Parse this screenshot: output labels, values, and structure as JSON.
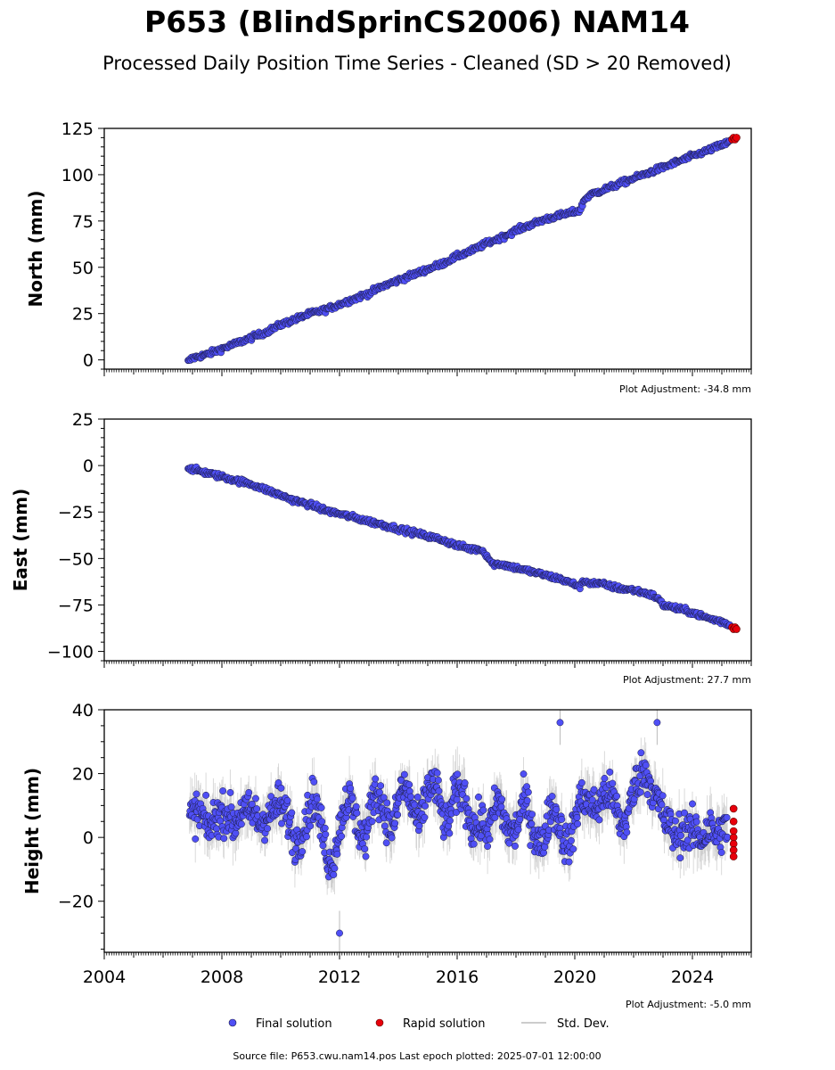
{
  "header": {
    "title": "P653 (BlindSprinCS2006) NAM14",
    "subtitle": "Processed Daily Position Time Series - Cleaned (SD > 20 Removed)"
  },
  "colors": {
    "final": "#4f4ff5",
    "rapid": "#e8000b",
    "std_dev": "#bbbbbb",
    "marker_edge": "#1a1a40"
  },
  "legend": {
    "final_label": "Final solution",
    "rapid_label": "Rapid solution",
    "std_label": "Std. Dev."
  },
  "footer": {
    "source": "Source file: P653.cwu.nam14.pos  Last epoch plotted: 2025-07-01 12:00:00"
  },
  "chart_data": [
    {
      "type": "scatter",
      "component": "north",
      "ylabel": "North (mm)",
      "adjustment": "Plot Adjustment: -34.8 mm",
      "xlim": [
        2004,
        2026
      ],
      "ylim": [
        -5,
        125
      ],
      "yticks": [
        0,
        25,
        50,
        75,
        100,
        125
      ],
      "ytick_labels": [
        "0",
        "25",
        "50",
        "75",
        "100",
        "125"
      ],
      "final_series": {
        "name": "Final solution",
        "x": [
          2006.85,
          2007.0,
          2007.5,
          2008.0,
          2008.5,
          2009.0,
          2009.5,
          2010.0,
          2010.5,
          2011.0,
          2011.5,
          2012.0,
          2012.5,
          2013.0,
          2013.5,
          2014.0,
          2014.5,
          2015.0,
          2015.5,
          2016.0,
          2016.5,
          2017.0,
          2017.5,
          2018.0,
          2018.5,
          2019.0,
          2019.5,
          2020.0,
          2020.2,
          2020.3,
          2020.5,
          2021.0,
          2021.5,
          2022.0,
          2022.5,
          2023.0,
          2023.5,
          2024.0,
          2024.5,
          2025.0,
          2025.3
        ],
        "y": [
          -1,
          1,
          3,
          6,
          9,
          12,
          15,
          19,
          22,
          25,
          27,
          30,
          33,
          36,
          40,
          43,
          46,
          49,
          52,
          56,
          59,
          63,
          66,
          70,
          73,
          76,
          78,
          80,
          81,
          86,
          89,
          92,
          95,
          98,
          101,
          104,
          107,
          110,
          113,
          116,
          118
        ]
      },
      "rapid_series": {
        "name": "Rapid solution",
        "x": [
          2025.35,
          2025.4,
          2025.45,
          2025.5
        ],
        "y": [
          119,
          120,
          119,
          120
        ]
      }
    },
    {
      "type": "scatter",
      "component": "east",
      "ylabel": "East (mm)",
      "adjustment": "Plot Adjustment: 27.7 mm",
      "xlim": [
        2004,
        2026
      ],
      "ylim": [
        -105,
        25
      ],
      "yticks": [
        -100,
        -75,
        -50,
        -25,
        0,
        25
      ],
      "ytick_labels": [
        "−100",
        "−75",
        "−50",
        "−25",
        "0",
        "25"
      ],
      "final_series": {
        "name": "Final solution",
        "x": [
          2006.85,
          2007.0,
          2007.5,
          2008.0,
          2008.5,
          2009.0,
          2009.5,
          2010.0,
          2010.5,
          2011.0,
          2011.5,
          2012.0,
          2012.5,
          2013.0,
          2013.5,
          2014.0,
          2014.5,
          2015.0,
          2015.5,
          2016.0,
          2016.5,
          2016.8,
          2017.0,
          2017.2,
          2017.5,
          2018.0,
          2018.5,
          2019.0,
          2019.5,
          2020.0,
          2020.2,
          2020.3,
          2020.5,
          2021.0,
          2021.5,
          2022.0,
          2022.5,
          2022.8,
          2023.0,
          2023.5,
          2024.0,
          2024.5,
          2025.0,
          2025.3
        ],
        "y": [
          -1,
          -2,
          -4,
          -6,
          -8,
          -10,
          -13,
          -16,
          -19,
          -21,
          -24,
          -26,
          -28,
          -30,
          -32,
          -34,
          -36,
          -38,
          -40,
          -43,
          -45,
          -45,
          -48,
          -53,
          -53,
          -55,
          -57,
          -59,
          -61,
          -64,
          -65,
          -62,
          -63,
          -64,
          -66,
          -67,
          -69,
          -71,
          -75,
          -77,
          -79,
          -82,
          -84,
          -86
        ]
      },
      "rapid_series": {
        "name": "Rapid solution",
        "x": [
          2025.35,
          2025.4,
          2025.45,
          2025.5
        ],
        "y": [
          -87,
          -88,
          -87,
          -88
        ]
      }
    },
    {
      "type": "scatter",
      "component": "height",
      "ylabel": "Height (mm)",
      "adjustment": "Plot Adjustment: -5.0 mm",
      "xlim": [
        2004,
        2026
      ],
      "ylim": [
        -36,
        40
      ],
      "yticks": [
        -20,
        0,
        20,
        40
      ],
      "ytick_labels": [
        "−20",
        "0",
        "20",
        "40"
      ],
      "xticks": [
        2004,
        2008,
        2012,
        2016,
        2020,
        2024
      ],
      "xtick_labels": [
        "2004",
        "2008",
        "2012",
        "2016",
        "2020",
        "2024"
      ],
      "final_series": {
        "name": "Final solution",
        "x": [
          2006.9,
          2007.2,
          2007.5,
          2007.8,
          2008.1,
          2008.4,
          2008.7,
          2009.0,
          2009.3,
          2009.6,
          2009.9,
          2010.2,
          2010.5,
          2010.8,
          2011.1,
          2011.4,
          2011.7,
          2012.0,
          2012.3,
          2012.6,
          2012.9,
          2013.2,
          2013.5,
          2013.8,
          2014.1,
          2014.4,
          2014.7,
          2015.0,
          2015.3,
          2015.6,
          2015.9,
          2016.2,
          2016.5,
          2016.8,
          2017.1,
          2017.4,
          2017.7,
          2018.0,
          2018.3,
          2018.6,
          2018.9,
          2019.2,
          2019.5,
          2019.8,
          2020.1,
          2020.4,
          2020.7,
          2021.0,
          2021.3,
          2021.6,
          2021.9,
          2022.2,
          2022.5,
          2022.8,
          2023.1,
          2023.4,
          2023.7,
          2024.0,
          2024.3,
          2024.6,
          2024.9,
          2025.2
        ],
        "y": [
          8,
          5,
          3,
          10,
          6,
          2,
          12,
          8,
          1,
          9,
          13,
          4,
          -2,
          7,
          11,
          0,
          -6,
          3,
          10,
          6,
          2,
          12,
          9,
          5,
          14,
          10,
          7,
          16,
          12,
          5,
          15,
          11,
          3,
          8,
          0,
          10,
          6,
          2,
          9,
          4,
          -1,
          7,
          3,
          0,
          8,
          10,
          12,
          14,
          9,
          5,
          13,
          17,
          19,
          15,
          3,
          -2,
          6,
          2,
          -4,
          5,
          3,
          0
        ]
      },
      "outliers": {
        "x": [
          2012.0,
          2019.5,
          2022.8
        ],
        "y": [
          -30,
          36,
          36
        ]
      },
      "rapid_series": {
        "name": "Rapid solution",
        "x": [
          2025.4,
          2025.4,
          2025.4,
          2025.4,
          2025.4,
          2025.4,
          2025.4
        ],
        "y": [
          9,
          5,
          2,
          0,
          -2,
          -4,
          -6
        ]
      }
    }
  ]
}
